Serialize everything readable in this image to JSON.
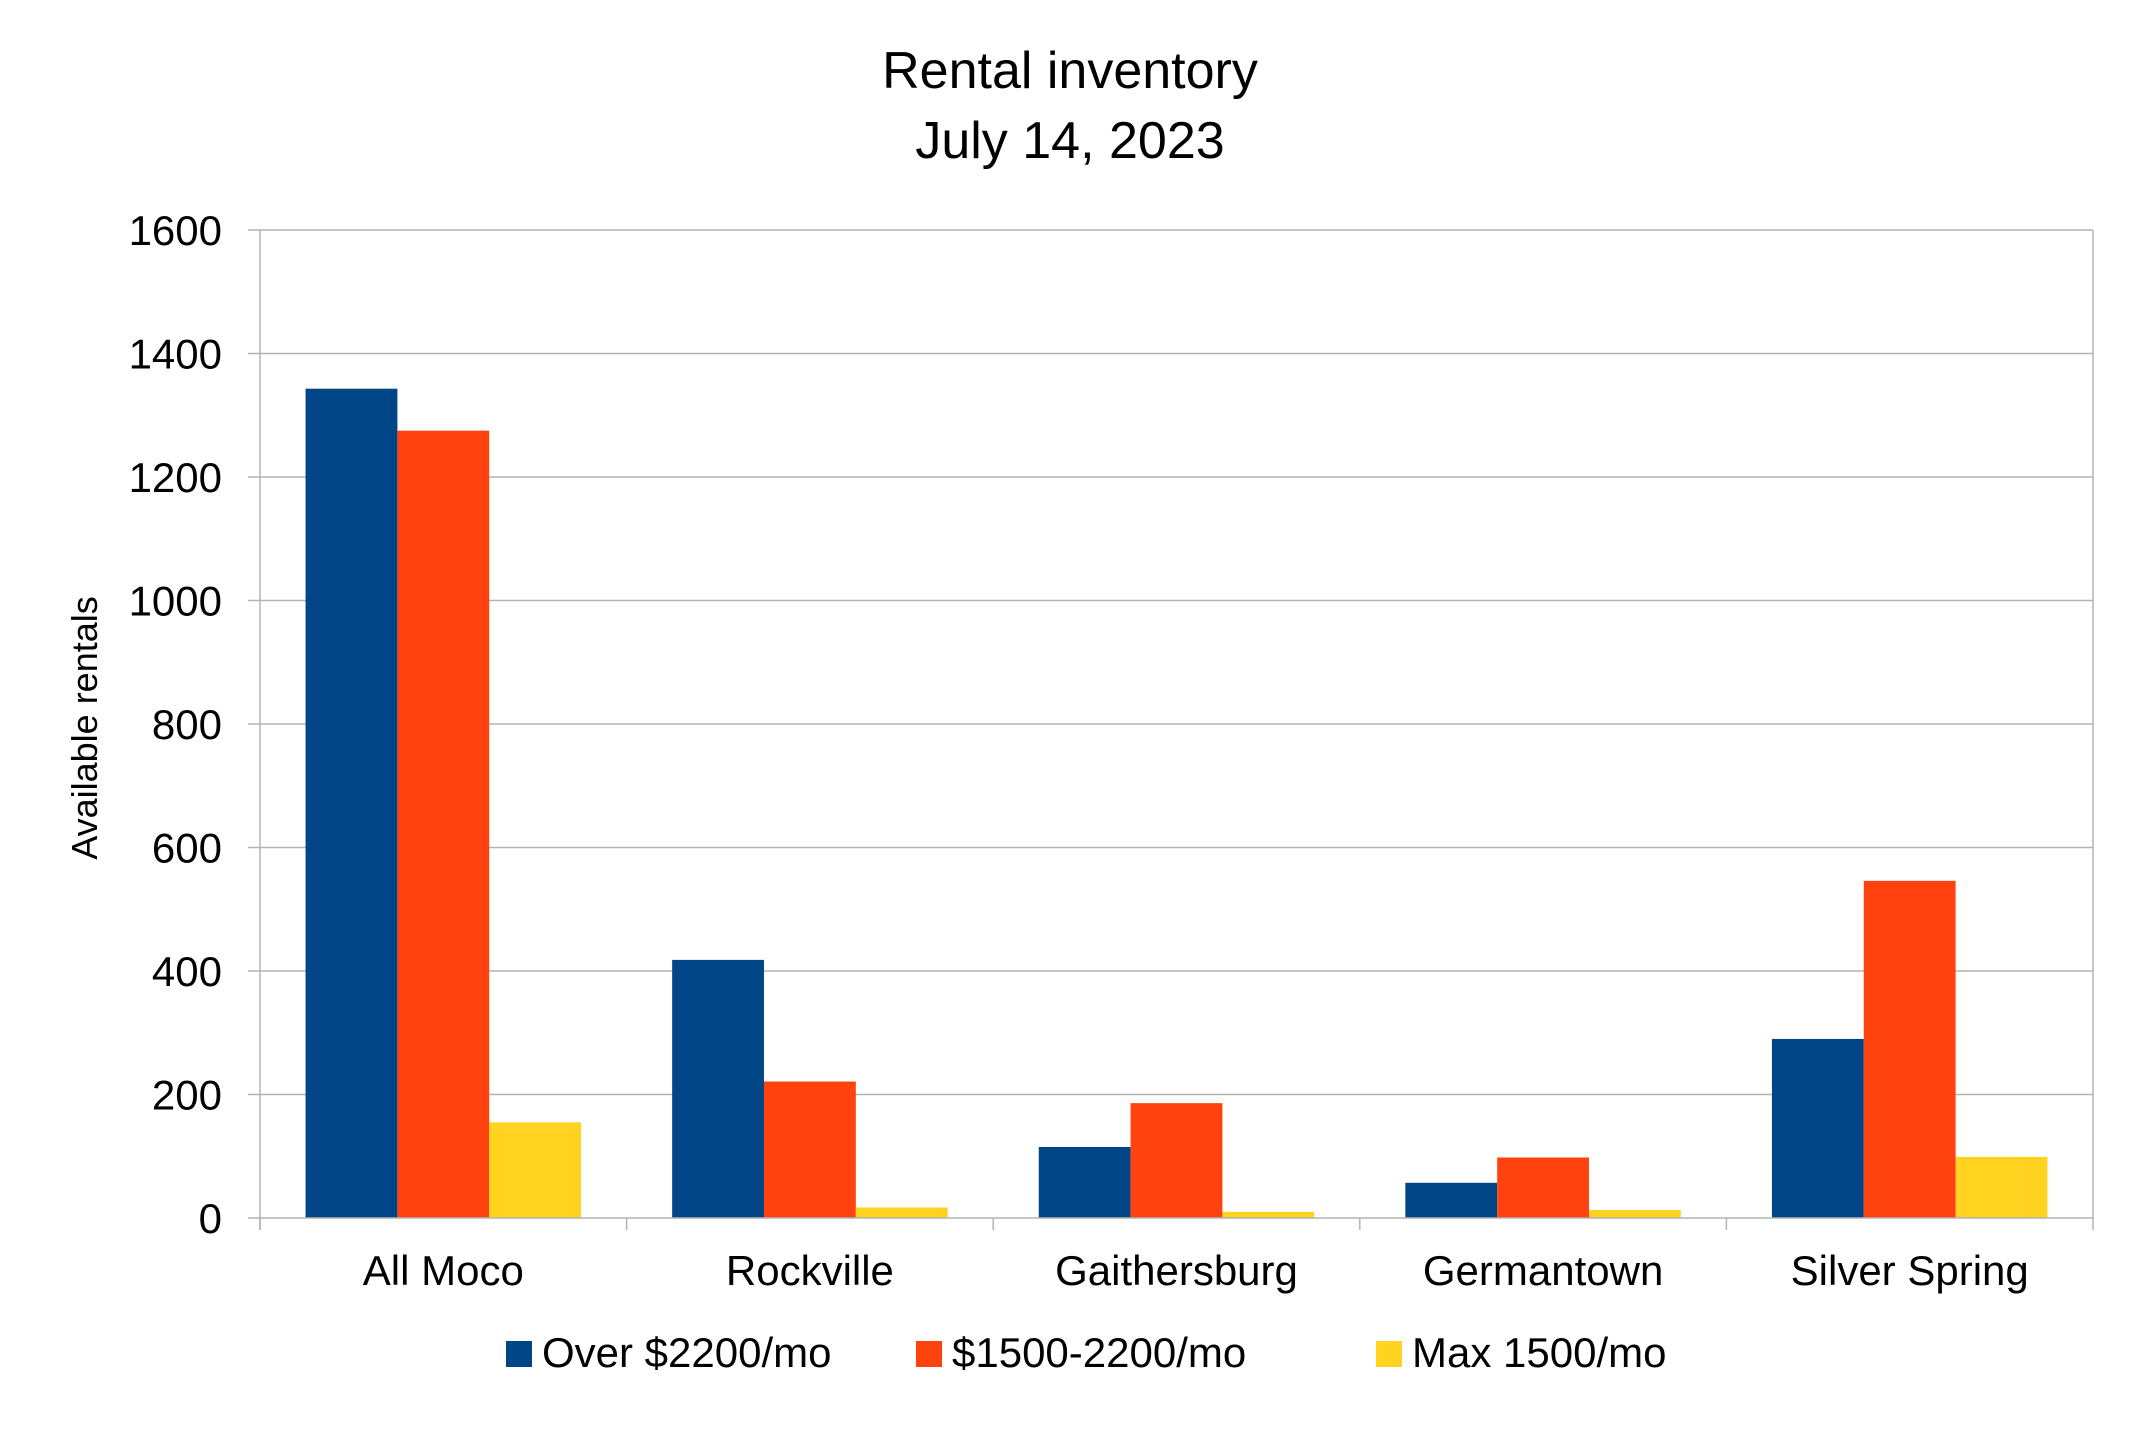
{
  "chart_data": {
    "type": "bar",
    "title": [
      "Rental inventory",
      "July 14, 2023"
    ],
    "xlabel": "",
    "ylabel": "Available rentals",
    "ylim": [
      0,
      1600
    ],
    "yticks": [
      0,
      200,
      400,
      600,
      800,
      1000,
      1200,
      1400,
      1600
    ],
    "ytick_labels": [
      "0",
      "200",
      "400",
      "600",
      "800",
      "1000",
      "1200",
      "1400",
      "1600"
    ],
    "grid": true,
    "legend_position": "bottom",
    "categories": [
      "All Moco",
      "Rockville",
      "Gaithersburg",
      "Germantown",
      "Silver Spring"
    ],
    "series": [
      {
        "name": "Over $2200/mo",
        "color": "#004586",
        "values": [
          1343,
          418,
          115,
          57,
          290
        ]
      },
      {
        "name": "$1500-2200/mo",
        "color": "#ff420e",
        "values": [
          1275,
          221,
          186,
          98,
          546
        ]
      },
      {
        "name": "Max 1500/mo",
        "color": "#ffd320",
        "values": [
          155,
          17,
          10,
          13,
          99
        ]
      }
    ]
  }
}
